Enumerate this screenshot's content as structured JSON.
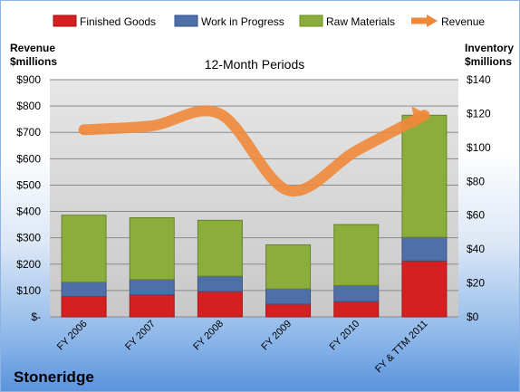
{
  "chart_data": {
    "type": "bar",
    "stacked": true,
    "title": "12-Month Periods",
    "company": "Stoneridge",
    "categories": [
      "FY 2006",
      "FY 2007",
      "FY 2008",
      "FY 2009",
      "FY 2010",
      "FY & TTM 2011"
    ],
    "series": [
      {
        "name": "Finished Goods",
        "axis": "right",
        "color": "#d42020",
        "values": [
          12,
          13,
          15,
          7.5,
          9,
          33
        ]
      },
      {
        "name": "Work in Progress",
        "axis": "right",
        "color": "#4f6fa8",
        "values": [
          8.5,
          9,
          9,
          9,
          9.5,
          14
        ]
      },
      {
        "name": "Raw Materials",
        "axis": "right",
        "color": "#8aad3c",
        "values": [
          39.5,
          36.5,
          33,
          26,
          36,
          72
        ]
      }
    ],
    "line_series": {
      "name": "Revenue",
      "axis": "left",
      "color": "#f0883a",
      "values": [
        710,
        725,
        770,
        480,
        630,
        765
      ]
    },
    "left_axis": {
      "label_line1": "Revenue",
      "label_line2": "$millions",
      "min": 0,
      "max": 900,
      "step": 100,
      "tick_labels": [
        "$-",
        "$100",
        "$200",
        "$300",
        "$400",
        "$500",
        "$600",
        "$700",
        "$800",
        "$900"
      ]
    },
    "right_axis": {
      "label_line1": "Inventory",
      "label_line2": "$millions",
      "min": 0,
      "max": 140,
      "step": 20,
      "tick_labels": [
        "$0",
        "$20",
        "$40",
        "$60",
        "$80",
        "$100",
        "$120",
        "$140"
      ]
    },
    "grid": true,
    "legend_position": "top"
  }
}
